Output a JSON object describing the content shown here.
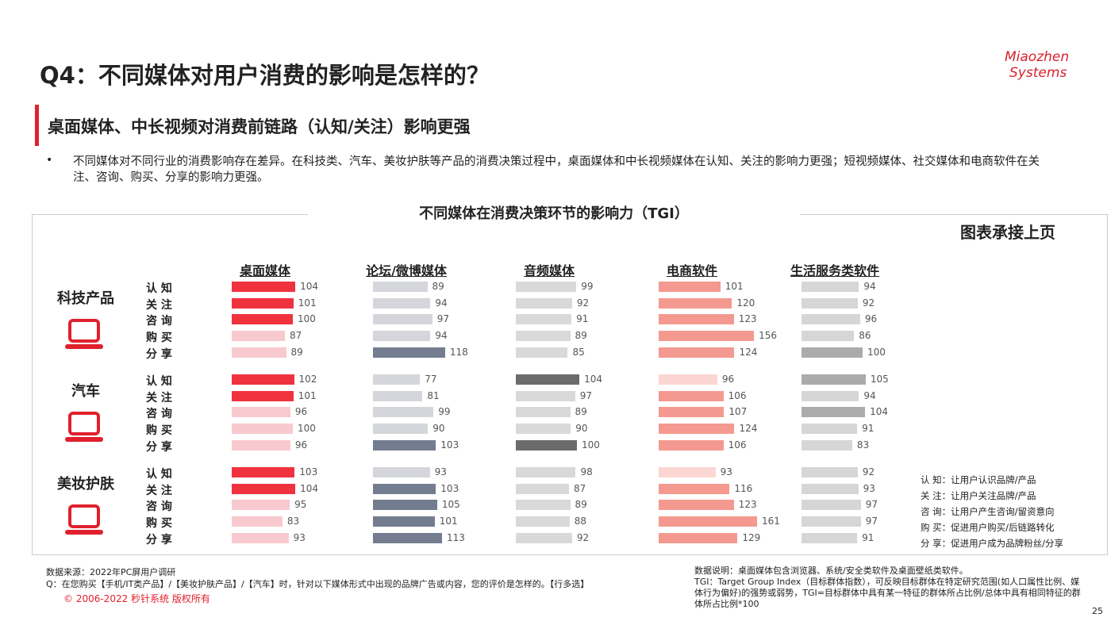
{
  "header": {
    "title": "Q4：不同媒体对用户消费的影响是怎样的？",
    "logo": [
      "Miaozhen",
      "Systems"
    ],
    "subtitle": "桌面媒体、中长视频对消费前链路（认知/关注）影响更强",
    "bullet": "不同媒体对不同行业的消费影响存在差异。在科技类、汽车、美妆护肤等产品的消费决策过程中，桌面媒体和中长视频媒体在认知、关注的影响力更强；短视频媒体、社交媒体和电商软件在关注、咨询、购买、分享的影响力更强。"
  },
  "chart_data": {
    "type": "bar",
    "title": "不同媒体在消费决策环节的影响力（TGI）",
    "continued": "图表承接上页",
    "media": [
      "桌面媒体",
      "论坛/微博媒体",
      "音频媒体",
      "电商软件",
      "生活服务类软件"
    ],
    "stages": [
      "认 知",
      "关 注",
      "咨 询",
      "购 买",
      "分 享"
    ],
    "groups": [
      {
        "name": "科技产品",
        "values": [
          [
            104,
            101,
            100,
            87,
            89
          ],
          [
            89,
            94,
            97,
            94,
            118
          ],
          [
            99,
            92,
            91,
            89,
            85
          ],
          [
            101,
            120,
            123,
            156,
            124
          ],
          [
            94,
            92,
            96,
            86,
            100
          ]
        ],
        "colors": [
          [
            "#f0323f",
            "#f0323f",
            "#f0323f",
            "#f8c9ce",
            "#f8c9ce"
          ],
          [
            "#d4d6db",
            "#d4d6db",
            "#d4d6db",
            "#d4d6db",
            "#737d8f"
          ],
          [
            "#d9d9d9",
            "#d9d9d9",
            "#d9d9d9",
            "#d9d9d9",
            "#d9d9d9"
          ],
          [
            "#f4998f",
            "#f4998f",
            "#f4998f",
            "#f4998f",
            "#f4998f"
          ],
          [
            "#d6d6d6",
            "#d6d6d6",
            "#d6d6d6",
            "#d6d6d6",
            "#ababab"
          ]
        ]
      },
      {
        "name": "汽车",
        "values": [
          [
            102,
            101,
            96,
            100,
            96
          ],
          [
            77,
            81,
            99,
            90,
            103
          ],
          [
            104,
            97,
            89,
            90,
            100
          ],
          [
            96,
            106,
            107,
            124,
            106
          ],
          [
            105,
            94,
            104,
            91,
            83
          ]
        ],
        "colors": [
          [
            "#f0323f",
            "#f0323f",
            "#f8c9ce",
            "#f8c9ce",
            "#f8c9ce"
          ],
          [
            "#d4d6db",
            "#d4d6db",
            "#d4d6db",
            "#d4d6db",
            "#737d8f"
          ],
          [
            "#6b6b6b",
            "#d9d9d9",
            "#d9d9d9",
            "#d9d9d9",
            "#6b6b6b"
          ],
          [
            "#fbd6d2",
            "#f4998f",
            "#f4998f",
            "#f4998f",
            "#f4998f"
          ],
          [
            "#ababab",
            "#d6d6d6",
            "#ababab",
            "#d6d6d6",
            "#d6d6d6"
          ]
        ]
      },
      {
        "name": "美妆护肤",
        "values": [
          [
            103,
            104,
            95,
            83,
            93
          ],
          [
            93,
            103,
            105,
            101,
            113
          ],
          [
            98,
            87,
            89,
            88,
            92
          ],
          [
            93,
            116,
            123,
            161,
            129
          ],
          [
            92,
            93,
            97,
            97,
            91
          ]
        ],
        "colors": [
          [
            "#f0323f",
            "#f0323f",
            "#f8c9ce",
            "#f8c9ce",
            "#f8c9ce"
          ],
          [
            "#d4d6db",
            "#737d8f",
            "#737d8f",
            "#737d8f",
            "#737d8f"
          ],
          [
            "#d9d9d9",
            "#d9d9d9",
            "#d9d9d9",
            "#d9d9d9",
            "#d9d9d9"
          ],
          [
            "#fbd6d2",
            "#f4998f",
            "#f4998f",
            "#f4998f",
            "#f4998f"
          ],
          [
            "#d6d6d6",
            "#d6d6d6",
            "#d6d6d6",
            "#d6d6d6",
            "#d6d6d6"
          ]
        ]
      }
    ]
  },
  "definitions": [
    "认 知：让用户认识品牌/产品",
    "关 注：让用户关注品牌/产品",
    "咨 询：让用户产生咨询/留资意向",
    "购 买：促进用户购买/后链路转化",
    "分 享：促进用户成为品牌粉丝/分享"
  ],
  "footer": {
    "source": "数据来源：2022年PC屏用户调研",
    "question": "Q：在您购买【手机/IT类产品】/【美妆护肤产品】/【汽车】时，针对以下媒体形式中出现的品牌广告或内容，您的评价是怎样的。【行多选】",
    "copyright": "© 2006-2022 秒针系统 版权所有",
    "notes": [
      "数据说明：桌面媒体包含浏览器、系统/安全类软件及桌面壁纸类软件。",
      "TGI：Target Group Index（目标群体指数），可反映目标群体在特定研究范围(如人口属性比例、媒体行为偏好)的强势或弱势，TGI=目标群体中具有某一特征的群体所占比例/总体中具有相同特征的群体所占比例*100"
    ],
    "page": "25"
  }
}
